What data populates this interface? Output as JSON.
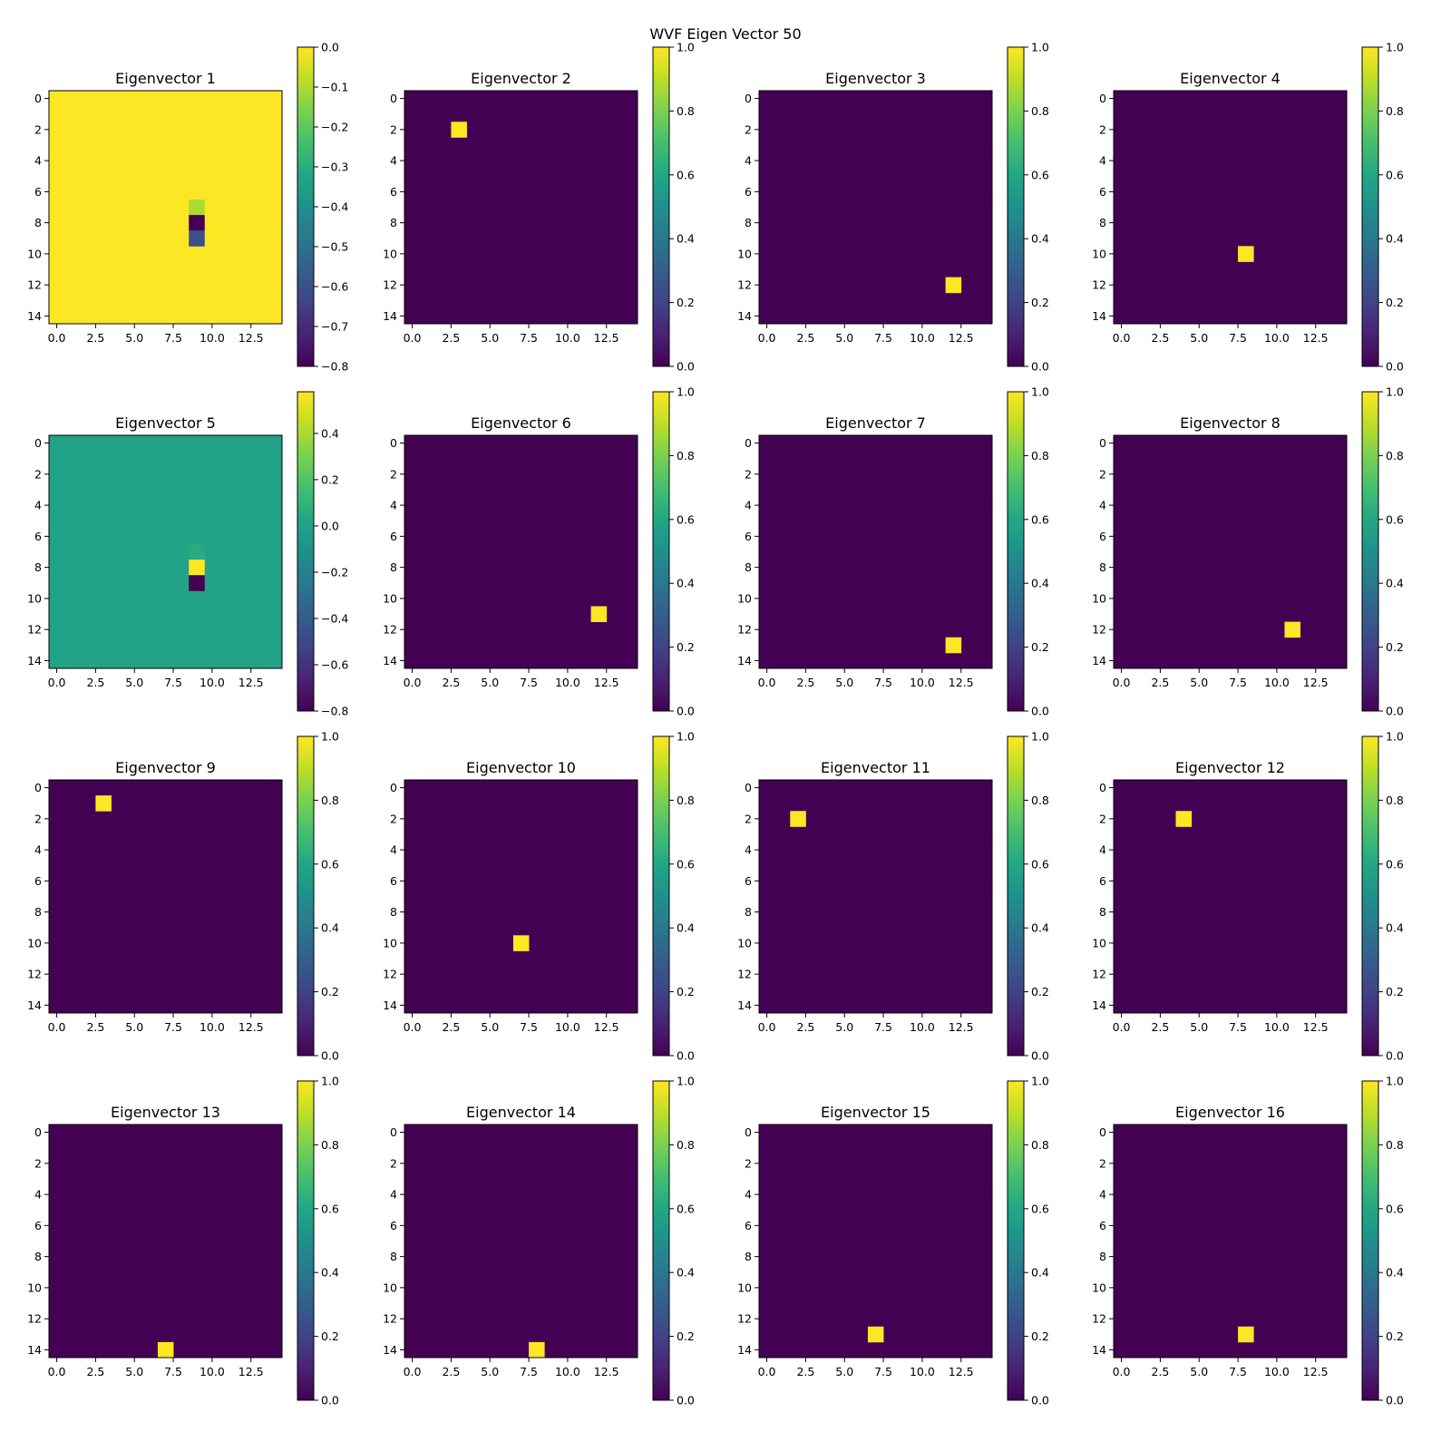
{
  "title": "WVF Eigen Vector 50",
  "colormap": "viridis",
  "chart_data": [
    {
      "type": "heatmap",
      "title": "Eigenvector 1",
      "grid_size": 15,
      "background": 0.0,
      "cells": [
        {
          "row": 7,
          "col": 9,
          "value": -0.1
        },
        {
          "row": 8,
          "col": 9,
          "value": -0.8
        },
        {
          "row": 9,
          "col": 9,
          "value": -0.6
        }
      ],
      "clim": [
        -0.8,
        0.0
      ],
      "colorbar_ticks": [
        "0.0",
        "−0.1",
        "−0.2",
        "−0.3",
        "−0.4",
        "−0.5",
        "−0.6",
        "−0.7",
        "−0.8"
      ],
      "x_ticks": [
        "0.0",
        "2.5",
        "5.0",
        "7.5",
        "10.0",
        "12.5"
      ],
      "y_ticks": [
        "0",
        "2",
        "4",
        "6",
        "8",
        "10",
        "12",
        "14"
      ]
    },
    {
      "type": "heatmap",
      "title": "Eigenvector 2",
      "grid_size": 15,
      "background": 0.0,
      "cells": [
        {
          "row": 2,
          "col": 3,
          "value": 1.0
        }
      ],
      "clim": [
        0.0,
        1.0
      ],
      "colorbar_ticks": [
        "1.0",
        "0.8",
        "0.6",
        "0.4",
        "0.2",
        "0.0"
      ],
      "x_ticks": [
        "0.0",
        "2.5",
        "5.0",
        "7.5",
        "10.0",
        "12.5"
      ],
      "y_ticks": [
        "0",
        "2",
        "4",
        "6",
        "8",
        "10",
        "12",
        "14"
      ]
    },
    {
      "type": "heatmap",
      "title": "Eigenvector 3",
      "grid_size": 15,
      "background": 0.0,
      "cells": [
        {
          "row": 12,
          "col": 12,
          "value": 1.0
        }
      ],
      "clim": [
        0.0,
        1.0
      ],
      "colorbar_ticks": [
        "1.0",
        "0.8",
        "0.6",
        "0.4",
        "0.2",
        "0.0"
      ],
      "x_ticks": [
        "0.0",
        "2.5",
        "5.0",
        "7.5",
        "10.0",
        "12.5"
      ],
      "y_ticks": [
        "0",
        "2",
        "4",
        "6",
        "8",
        "10",
        "12",
        "14"
      ]
    },
    {
      "type": "heatmap",
      "title": "Eigenvector 4",
      "grid_size": 15,
      "background": 0.0,
      "cells": [
        {
          "row": 10,
          "col": 8,
          "value": 1.0
        }
      ],
      "clim": [
        0.0,
        1.0
      ],
      "colorbar_ticks": [
        "1.0",
        "0.8",
        "0.6",
        "0.4",
        "0.2",
        "0.0"
      ],
      "x_ticks": [
        "0.0",
        "2.5",
        "5.0",
        "7.5",
        "10.0",
        "12.5"
      ],
      "y_ticks": [
        "0",
        "2",
        "4",
        "6",
        "8",
        "10",
        "12",
        "14"
      ]
    },
    {
      "type": "heatmap",
      "title": "Eigenvector 5",
      "grid_size": 15,
      "background": 0.0,
      "cells": [
        {
          "row": 7,
          "col": 9,
          "value": 0.05
        },
        {
          "row": 8,
          "col": 9,
          "value": 0.58
        },
        {
          "row": 9,
          "col": 9,
          "value": -0.8
        }
      ],
      "clim": [
        -0.8,
        0.58
      ],
      "colorbar_ticks": [
        "0.4",
        "0.2",
        "0.0",
        "−0.2",
        "−0.4",
        "−0.6",
        "−0.8"
      ],
      "colorbar_tick_values": [
        0.4,
        0.2,
        0.0,
        -0.2,
        -0.4,
        -0.6,
        -0.8
      ],
      "x_ticks": [
        "0.0",
        "2.5",
        "5.0",
        "7.5",
        "10.0",
        "12.5"
      ],
      "y_ticks": [
        "0",
        "2",
        "4",
        "6",
        "8",
        "10",
        "12",
        "14"
      ]
    },
    {
      "type": "heatmap",
      "title": "Eigenvector 6",
      "grid_size": 15,
      "background": 0.0,
      "cells": [
        {
          "row": 11,
          "col": 12,
          "value": 1.0
        }
      ],
      "clim": [
        0.0,
        1.0
      ],
      "colorbar_ticks": [
        "1.0",
        "0.8",
        "0.6",
        "0.4",
        "0.2",
        "0.0"
      ],
      "x_ticks": [
        "0.0",
        "2.5",
        "5.0",
        "7.5",
        "10.0",
        "12.5"
      ],
      "y_ticks": [
        "0",
        "2",
        "4",
        "6",
        "8",
        "10",
        "12",
        "14"
      ]
    },
    {
      "type": "heatmap",
      "title": "Eigenvector 7",
      "grid_size": 15,
      "background": 0.0,
      "cells": [
        {
          "row": 13,
          "col": 12,
          "value": 1.0
        }
      ],
      "clim": [
        0.0,
        1.0
      ],
      "colorbar_ticks": [
        "1.0",
        "0.8",
        "0.6",
        "0.4",
        "0.2",
        "0.0"
      ],
      "x_ticks": [
        "0.0",
        "2.5",
        "5.0",
        "7.5",
        "10.0",
        "12.5"
      ],
      "y_ticks": [
        "0",
        "2",
        "4",
        "6",
        "8",
        "10",
        "12",
        "14"
      ]
    },
    {
      "type": "heatmap",
      "title": "Eigenvector 8",
      "grid_size": 15,
      "background": 0.0,
      "cells": [
        {
          "row": 12,
          "col": 11,
          "value": 1.0
        }
      ],
      "clim": [
        0.0,
        1.0
      ],
      "colorbar_ticks": [
        "1.0",
        "0.8",
        "0.6",
        "0.4",
        "0.2",
        "0.0"
      ],
      "x_ticks": [
        "0.0",
        "2.5",
        "5.0",
        "7.5",
        "10.0",
        "12.5"
      ],
      "y_ticks": [
        "0",
        "2",
        "4",
        "6",
        "8",
        "10",
        "12",
        "14"
      ]
    },
    {
      "type": "heatmap",
      "title": "Eigenvector 9",
      "grid_size": 15,
      "background": 0.0,
      "cells": [
        {
          "row": 1,
          "col": 3,
          "value": 1.0
        }
      ],
      "clim": [
        0.0,
        1.0
      ],
      "colorbar_ticks": [
        "1.0",
        "0.8",
        "0.6",
        "0.4",
        "0.2",
        "0.0"
      ],
      "x_ticks": [
        "0.0",
        "2.5",
        "5.0",
        "7.5",
        "10.0",
        "12.5"
      ],
      "y_ticks": [
        "0",
        "2",
        "4",
        "6",
        "8",
        "10",
        "12",
        "14"
      ]
    },
    {
      "type": "heatmap",
      "title": "Eigenvector 10",
      "grid_size": 15,
      "background": 0.0,
      "cells": [
        {
          "row": 10,
          "col": 7,
          "value": 1.0
        }
      ],
      "clim": [
        0.0,
        1.0
      ],
      "colorbar_ticks": [
        "1.0",
        "0.8",
        "0.6",
        "0.4",
        "0.2",
        "0.0"
      ],
      "x_ticks": [
        "0.0",
        "2.5",
        "5.0",
        "7.5",
        "10.0",
        "12.5"
      ],
      "y_ticks": [
        "0",
        "2",
        "4",
        "6",
        "8",
        "10",
        "12",
        "14"
      ]
    },
    {
      "type": "heatmap",
      "title": "Eigenvector 11",
      "grid_size": 15,
      "background": 0.0,
      "cells": [
        {
          "row": 2,
          "col": 2,
          "value": 1.0
        }
      ],
      "clim": [
        0.0,
        1.0
      ],
      "colorbar_ticks": [
        "1.0",
        "0.8",
        "0.6",
        "0.4",
        "0.2",
        "0.0"
      ],
      "x_ticks": [
        "0.0",
        "2.5",
        "5.0",
        "7.5",
        "10.0",
        "12.5"
      ],
      "y_ticks": [
        "0",
        "2",
        "4",
        "6",
        "8",
        "10",
        "12",
        "14"
      ]
    },
    {
      "type": "heatmap",
      "title": "Eigenvector 12",
      "grid_size": 15,
      "background": 0.0,
      "cells": [
        {
          "row": 2,
          "col": 4,
          "value": 1.0
        }
      ],
      "clim": [
        0.0,
        1.0
      ],
      "colorbar_ticks": [
        "1.0",
        "0.8",
        "0.6",
        "0.4",
        "0.2",
        "0.0"
      ],
      "x_ticks": [
        "0.0",
        "2.5",
        "5.0",
        "7.5",
        "10.0",
        "12.5"
      ],
      "y_ticks": [
        "0",
        "2",
        "4",
        "6",
        "8",
        "10",
        "12",
        "14"
      ]
    },
    {
      "type": "heatmap",
      "title": "Eigenvector 13",
      "grid_size": 15,
      "background": 0.0,
      "cells": [
        {
          "row": 14,
          "col": 7,
          "value": 1.0
        }
      ],
      "clim": [
        0.0,
        1.0
      ],
      "colorbar_ticks": [
        "1.0",
        "0.8",
        "0.6",
        "0.4",
        "0.2",
        "0.0"
      ],
      "x_ticks": [
        "0.0",
        "2.5",
        "5.0",
        "7.5",
        "10.0",
        "12.5"
      ],
      "y_ticks": [
        "0",
        "2",
        "4",
        "6",
        "8",
        "10",
        "12",
        "14"
      ]
    },
    {
      "type": "heatmap",
      "title": "Eigenvector 14",
      "grid_size": 15,
      "background": 0.0,
      "cells": [
        {
          "row": 14,
          "col": 8,
          "value": 1.0
        }
      ],
      "clim": [
        0.0,
        1.0
      ],
      "colorbar_ticks": [
        "1.0",
        "0.8",
        "0.6",
        "0.4",
        "0.2",
        "0.0"
      ],
      "x_ticks": [
        "0.0",
        "2.5",
        "5.0",
        "7.5",
        "10.0",
        "12.5"
      ],
      "y_ticks": [
        "0",
        "2",
        "4",
        "6",
        "8",
        "10",
        "12",
        "14"
      ]
    },
    {
      "type": "heatmap",
      "title": "Eigenvector 15",
      "grid_size": 15,
      "background": 0.0,
      "cells": [
        {
          "row": 13,
          "col": 7,
          "value": 1.0
        }
      ],
      "clim": [
        0.0,
        1.0
      ],
      "colorbar_ticks": [
        "1.0",
        "0.8",
        "0.6",
        "0.4",
        "0.2",
        "0.0"
      ],
      "x_ticks": [
        "0.0",
        "2.5",
        "5.0",
        "7.5",
        "10.0",
        "12.5"
      ],
      "y_ticks": [
        "0",
        "2",
        "4",
        "6",
        "8",
        "10",
        "12",
        "14"
      ]
    },
    {
      "type": "heatmap",
      "title": "Eigenvector 16",
      "grid_size": 15,
      "background": 0.0,
      "cells": [
        {
          "row": 13,
          "col": 8,
          "value": 1.0
        }
      ],
      "clim": [
        0.0,
        1.0
      ],
      "colorbar_ticks": [
        "1.0",
        "0.8",
        "0.6",
        "0.4",
        "0.2",
        "0.0"
      ],
      "x_ticks": [
        "0.0",
        "2.5",
        "5.0",
        "7.5",
        "10.0",
        "12.5"
      ],
      "y_ticks": [
        "0",
        "2",
        "4",
        "6",
        "8",
        "10",
        "12",
        "14"
      ]
    }
  ]
}
